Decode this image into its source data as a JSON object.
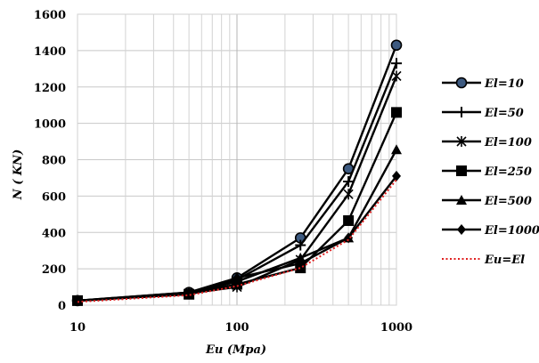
{
  "chart_data": {
    "type": "line",
    "x_scale": "log",
    "x": [
      10,
      50,
      100,
      250,
      500,
      1000
    ],
    "xlim": [
      10,
      1000
    ],
    "ylim": [
      0,
      1600
    ],
    "xticks": [
      "10",
      "100",
      "1000"
    ],
    "yticks": [
      "0",
      "200",
      "400",
      "600",
      "800",
      "1000",
      "1200",
      "1400",
      "1600"
    ],
    "xlabel": "Eu (Mpa)",
    "ylabel": "N ( KN)",
    "grid": "major and minor",
    "legend_position": "right",
    "series": [
      {
        "name": "El=10",
        "marker": "circle",
        "color": "#000000",
        "values": [
          25,
          70,
          150,
          370,
          750,
          1430
        ]
      },
      {
        "name": "El=50",
        "marker": "plus",
        "color": "#000000",
        "values": [
          25,
          70,
          140,
          330,
          680,
          1330
        ]
      },
      {
        "name": "El=100",
        "marker": "star",
        "color": "#000000",
        "values": [
          25,
          65,
          100,
          250,
          610,
          1260
        ]
      },
      {
        "name": "El=250",
        "marker": "square",
        "color": "#000000",
        "values": [
          25,
          60,
          115,
          205,
          465,
          1060
        ]
      },
      {
        "name": "El=500",
        "marker": "triangle",
        "color": "#000000",
        "values": [
          25,
          60,
          130,
          260,
          370,
          855
        ]
      },
      {
        "name": "El=1000",
        "marker": "diamond",
        "color": "#000000",
        "values": [
          25,
          60,
          150,
          230,
          370,
          710
        ]
      },
      {
        "name": "Eu=El",
        "marker": "none",
        "color": "#e02020",
        "dashed": true,
        "values": [
          18,
          55,
          105,
          205,
          360,
          690
        ]
      }
    ]
  }
}
